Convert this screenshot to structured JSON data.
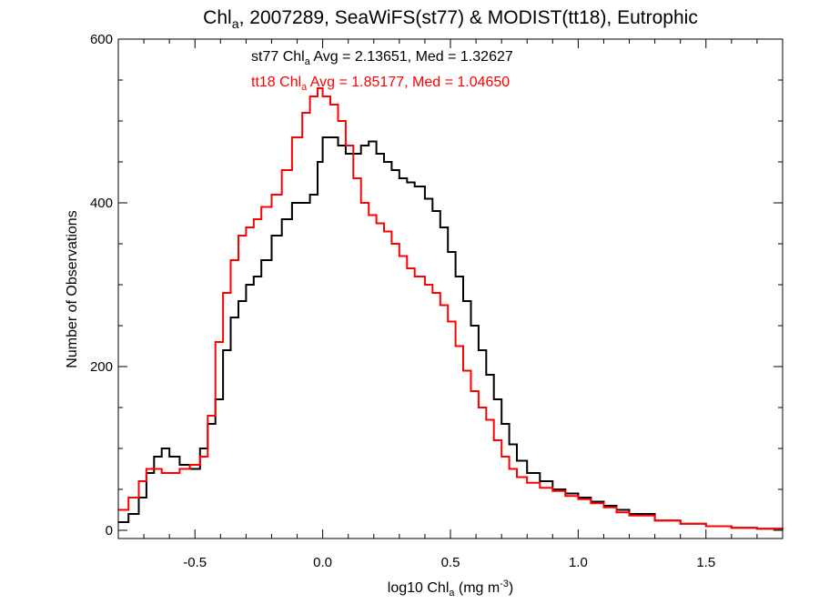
{
  "title": {
    "pre": "Chl",
    "sub": "a",
    "post": ", 2007289, SeaWiFS(st77) & MODIST(tt18), Eutrophic"
  },
  "annotations": {
    "st77": {
      "pre": "st77 Chl",
      "sub": "a",
      "post": " Avg = 2.13651, Med = 1.32627",
      "color": "#000000"
    },
    "tt18": {
      "pre": "tt18 Chl",
      "sub": "a",
      "post": " Avg = 1.85177, Med = 1.04650",
      "color": "#ff0000"
    }
  },
  "xlabel": {
    "pre": "log10 Chl",
    "sub": "a",
    "mid": " (mg m",
    "sup": "-3",
    "post": ")"
  },
  "ylabel": "Number of Observations",
  "chart_data": {
    "type": "line",
    "style": "histogram-step",
    "xlim": [
      -0.8,
      1.8
    ],
    "ylim": [
      -10,
      600
    ],
    "xticks": [
      -0.5,
      0.0,
      0.5,
      1.0,
      1.5
    ],
    "xtick_labels": [
      "-0.5",
      "0.0",
      "0.5",
      "1.0",
      "1.5"
    ],
    "yticks": [
      0,
      200,
      400,
      600
    ],
    "ytick_labels": [
      "0",
      "200",
      "400",
      "600"
    ],
    "grid": false,
    "series": [
      {
        "name": "st77",
        "color": "#000000",
        "points": [
          [
            -0.8,
            10
          ],
          [
            -0.76,
            20
          ],
          [
            -0.72,
            40
          ],
          [
            -0.69,
            70
          ],
          [
            -0.66,
            90
          ],
          [
            -0.63,
            100
          ],
          [
            -0.6,
            90
          ],
          [
            -0.56,
            80
          ],
          [
            -0.52,
            75
          ],
          [
            -0.48,
            100
          ],
          [
            -0.45,
            130
          ],
          [
            -0.42,
            160
          ],
          [
            -0.39,
            220
          ],
          [
            -0.36,
            260
          ],
          [
            -0.33,
            280
          ],
          [
            -0.3,
            300
          ],
          [
            -0.27,
            310
          ],
          [
            -0.24,
            330
          ],
          [
            -0.2,
            360
          ],
          [
            -0.16,
            380
          ],
          [
            -0.12,
            400
          ],
          [
            -0.08,
            400
          ],
          [
            -0.05,
            410
          ],
          [
            -0.02,
            450
          ],
          [
            0.0,
            480
          ],
          [
            0.03,
            480
          ],
          [
            0.06,
            470
          ],
          [
            0.09,
            460
          ],
          [
            0.12,
            460
          ],
          [
            0.15,
            470
          ],
          [
            0.18,
            475
          ],
          [
            0.21,
            460
          ],
          [
            0.24,
            450
          ],
          [
            0.27,
            440
          ],
          [
            0.3,
            430
          ],
          [
            0.33,
            425
          ],
          [
            0.36,
            420
          ],
          [
            0.4,
            405
          ],
          [
            0.43,
            390
          ],
          [
            0.46,
            370
          ],
          [
            0.49,
            340
          ],
          [
            0.52,
            310
          ],
          [
            0.55,
            280
          ],
          [
            0.58,
            250
          ],
          [
            0.61,
            220
          ],
          [
            0.64,
            190
          ],
          [
            0.67,
            160
          ],
          [
            0.7,
            130
          ],
          [
            0.73,
            105
          ],
          [
            0.76,
            85
          ],
          [
            0.8,
            70
          ],
          [
            0.85,
            60
          ],
          [
            0.9,
            50
          ],
          [
            0.95,
            45
          ],
          [
            1.0,
            40
          ],
          [
            1.05,
            35
          ],
          [
            1.1,
            30
          ],
          [
            1.15,
            25
          ],
          [
            1.2,
            20
          ],
          [
            1.3,
            12
          ],
          [
            1.4,
            8
          ],
          [
            1.5,
            5
          ],
          [
            1.6,
            3
          ],
          [
            1.7,
            2
          ],
          [
            1.8,
            1
          ]
        ]
      },
      {
        "name": "tt18",
        "color": "#ff0000",
        "points": [
          [
            -0.8,
            25
          ],
          [
            -0.76,
            40
          ],
          [
            -0.72,
            60
          ],
          [
            -0.69,
            75
          ],
          [
            -0.66,
            75
          ],
          [
            -0.63,
            70
          ],
          [
            -0.6,
            70
          ],
          [
            -0.56,
            75
          ],
          [
            -0.52,
            80
          ],
          [
            -0.48,
            90
          ],
          [
            -0.45,
            140
          ],
          [
            -0.42,
            230
          ],
          [
            -0.39,
            290
          ],
          [
            -0.36,
            330
          ],
          [
            -0.33,
            360
          ],
          [
            -0.3,
            370
          ],
          [
            -0.27,
            380
          ],
          [
            -0.24,
            395
          ],
          [
            -0.2,
            410
          ],
          [
            -0.16,
            440
          ],
          [
            -0.12,
            480
          ],
          [
            -0.08,
            510
          ],
          [
            -0.05,
            530
          ],
          [
            -0.02,
            540
          ],
          [
            0.0,
            530
          ],
          [
            0.03,
            520
          ],
          [
            0.06,
            500
          ],
          [
            0.09,
            470
          ],
          [
            0.12,
            430
          ],
          [
            0.15,
            400
          ],
          [
            0.18,
            385
          ],
          [
            0.21,
            375
          ],
          [
            0.24,
            365
          ],
          [
            0.27,
            350
          ],
          [
            0.3,
            335
          ],
          [
            0.33,
            320
          ],
          [
            0.36,
            310
          ],
          [
            0.4,
            300
          ],
          [
            0.43,
            290
          ],
          [
            0.46,
            275
          ],
          [
            0.49,
            255
          ],
          [
            0.52,
            225
          ],
          [
            0.55,
            195
          ],
          [
            0.58,
            170
          ],
          [
            0.61,
            150
          ],
          [
            0.64,
            135
          ],
          [
            0.67,
            110
          ],
          [
            0.7,
            90
          ],
          [
            0.73,
            75
          ],
          [
            0.76,
            65
          ],
          [
            0.8,
            58
          ],
          [
            0.85,
            52
          ],
          [
            0.9,
            48
          ],
          [
            0.95,
            42
          ],
          [
            1.0,
            38
          ],
          [
            1.05,
            33
          ],
          [
            1.1,
            28
          ],
          [
            1.15,
            22
          ],
          [
            1.2,
            18
          ],
          [
            1.3,
            12
          ],
          [
            1.4,
            8
          ],
          [
            1.5,
            5
          ],
          [
            1.6,
            3
          ],
          [
            1.7,
            2
          ],
          [
            1.8,
            1
          ]
        ]
      }
    ]
  }
}
